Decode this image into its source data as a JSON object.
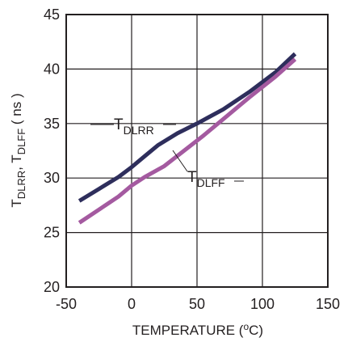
{
  "chart_data": {
    "type": "line",
    "xlabel_parts": [
      "TEMPERATURE (",
      "o",
      "C)"
    ],
    "ylabel_parts": [
      "T",
      "DLRR",
      ", T",
      "DLFF",
      " ( ns )"
    ],
    "xlim": [
      -50,
      150
    ],
    "ylim": [
      20,
      45
    ],
    "xticks": [
      -50,
      0,
      50,
      100,
      150
    ],
    "yticks": [
      20,
      25,
      30,
      35,
      40,
      45
    ],
    "grid": true,
    "series": [
      {
        "label_main": "T",
        "label_sub": "DLRR",
        "color": "#2e2e5c",
        "x": [
          -40,
          -25,
          -10,
          0,
          10,
          20,
          35,
          50,
          70,
          90,
          110,
          125
        ],
        "y": [
          27.9,
          29.0,
          30.1,
          31.0,
          32.0,
          33.0,
          34.1,
          35.0,
          36.3,
          37.9,
          39.7,
          41.4
        ]
      },
      {
        "label_main": "T",
        "label_sub": "DLFF",
        "color": "#a45aa0",
        "x": [
          -40,
          -25,
          -10,
          0,
          10,
          25,
          40,
          55,
          70,
          90,
          110,
          125
        ],
        "y": [
          25.9,
          27.1,
          28.3,
          29.3,
          30.1,
          31.1,
          32.5,
          33.9,
          35.4,
          37.4,
          39.3,
          40.9
        ]
      }
    ]
  }
}
